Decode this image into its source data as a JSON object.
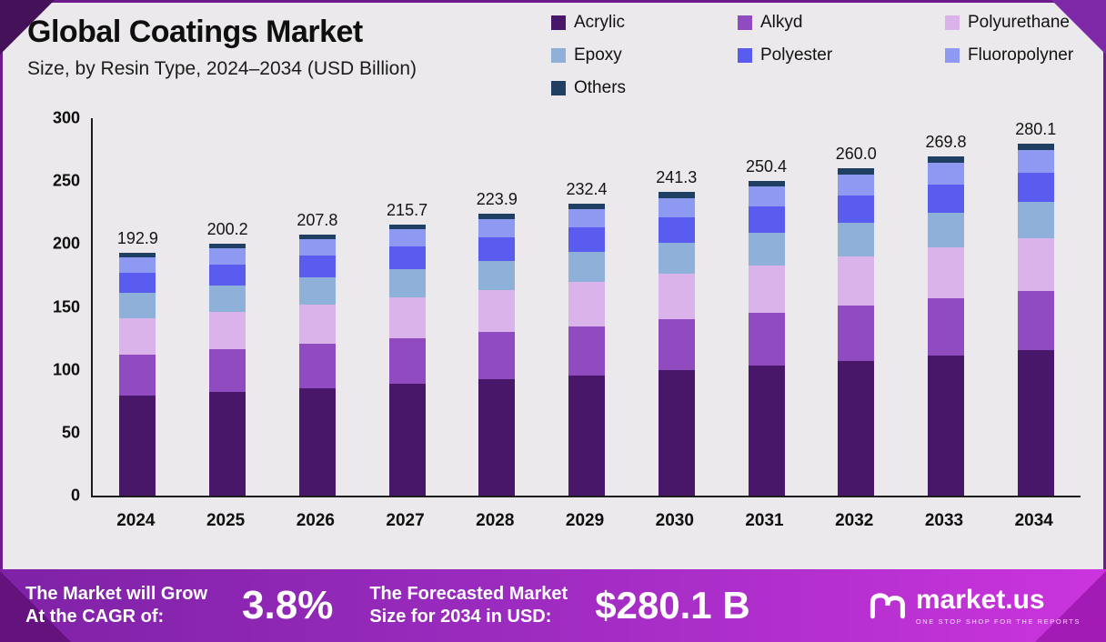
{
  "header": {
    "title": "Global Coatings Market",
    "subtitle": "Size, by Resin Type, 2024–2034 (USD Billion)"
  },
  "chart_data": {
    "type": "bar",
    "stacked": true,
    "title": "Global Coatings Market",
    "subtitle": "Size, by Resin Type, 2024–2034 (USD Billion)",
    "unit": "USD Billion",
    "grid": false,
    "legend_position": "top-right",
    "ylim": [
      0,
      300
    ],
    "yticks": [
      0,
      50,
      100,
      150,
      200,
      250,
      300
    ],
    "categories": [
      "2024",
      "2025",
      "2026",
      "2027",
      "2028",
      "2029",
      "2030",
      "2031",
      "2032",
      "2033",
      "2034"
    ],
    "totals": [
      "192.9",
      "200.2",
      "207.8",
      "215.7",
      "223.9",
      "232.4",
      "241.3",
      "250.4",
      "260.0",
      "269.8",
      "280.1"
    ],
    "series": [
      {
        "name": "Acrylic",
        "color": "#481769",
        "values": [
          79.5,
          82.5,
          85.6,
          88.9,
          92.2,
          95.7,
          99.4,
          103.2,
          107.1,
          111.2,
          115.4
        ]
      },
      {
        "name": "Alkyd",
        "color": "#8f4bbf",
        "values": [
          32.4,
          33.6,
          34.9,
          36.2,
          37.6,
          39.0,
          40.5,
          42.1,
          43.7,
          45.3,
          47.1
        ]
      },
      {
        "name": "Polyurethane",
        "color": "#d9b3ea",
        "values": [
          28.9,
          30.0,
          31.2,
          32.4,
          33.6,
          34.9,
          36.2,
          37.6,
          39.0,
          40.5,
          42.0
        ]
      },
      {
        "name": "Epoxy",
        "color": "#8fb0d8",
        "values": [
          20.1,
          20.8,
          21.6,
          22.4,
          23.3,
          24.2,
          25.1,
          26.0,
          27.0,
          28.1,
          29.1
        ]
      },
      {
        "name": "Polyester",
        "color": "#5a5cf0",
        "values": [
          16.0,
          16.6,
          17.2,
          17.9,
          18.6,
          19.3,
          20.0,
          20.8,
          21.6,
          22.4,
          23.2
        ]
      },
      {
        "name": "Fluoropolyner",
        "color": "#8e9af2",
        "values": [
          12.3,
          12.8,
          13.3,
          13.8,
          14.3,
          14.9,
          15.4,
          16.0,
          16.6,
          17.2,
          17.9
        ]
      },
      {
        "name": "Others",
        "color": "#1f3f63",
        "values": [
          3.7,
          3.9,
          4.0,
          4.1,
          4.3,
          4.4,
          4.7,
          4.7,
          5.0,
          5.1,
          5.4
        ]
      }
    ]
  },
  "banner": {
    "cagr_label_line1": "The Market will Grow",
    "cagr_label_line2": "At the CAGR of:",
    "cagr_value": "3.8%",
    "forecast_label_line1": "The Forecasted Market",
    "forecast_label_line2": "Size for 2034 in USD:",
    "forecast_value": "$280.1 B",
    "brand_name": "market.us",
    "brand_tagline": "ONE STOP SHOP FOR THE REPORTS"
  },
  "colors": {
    "background": "#ebe9eb",
    "banner_gradient_left": "#7e22a6",
    "banner_gradient_right": "#cb34dd",
    "axis": "#1c1c1c"
  }
}
